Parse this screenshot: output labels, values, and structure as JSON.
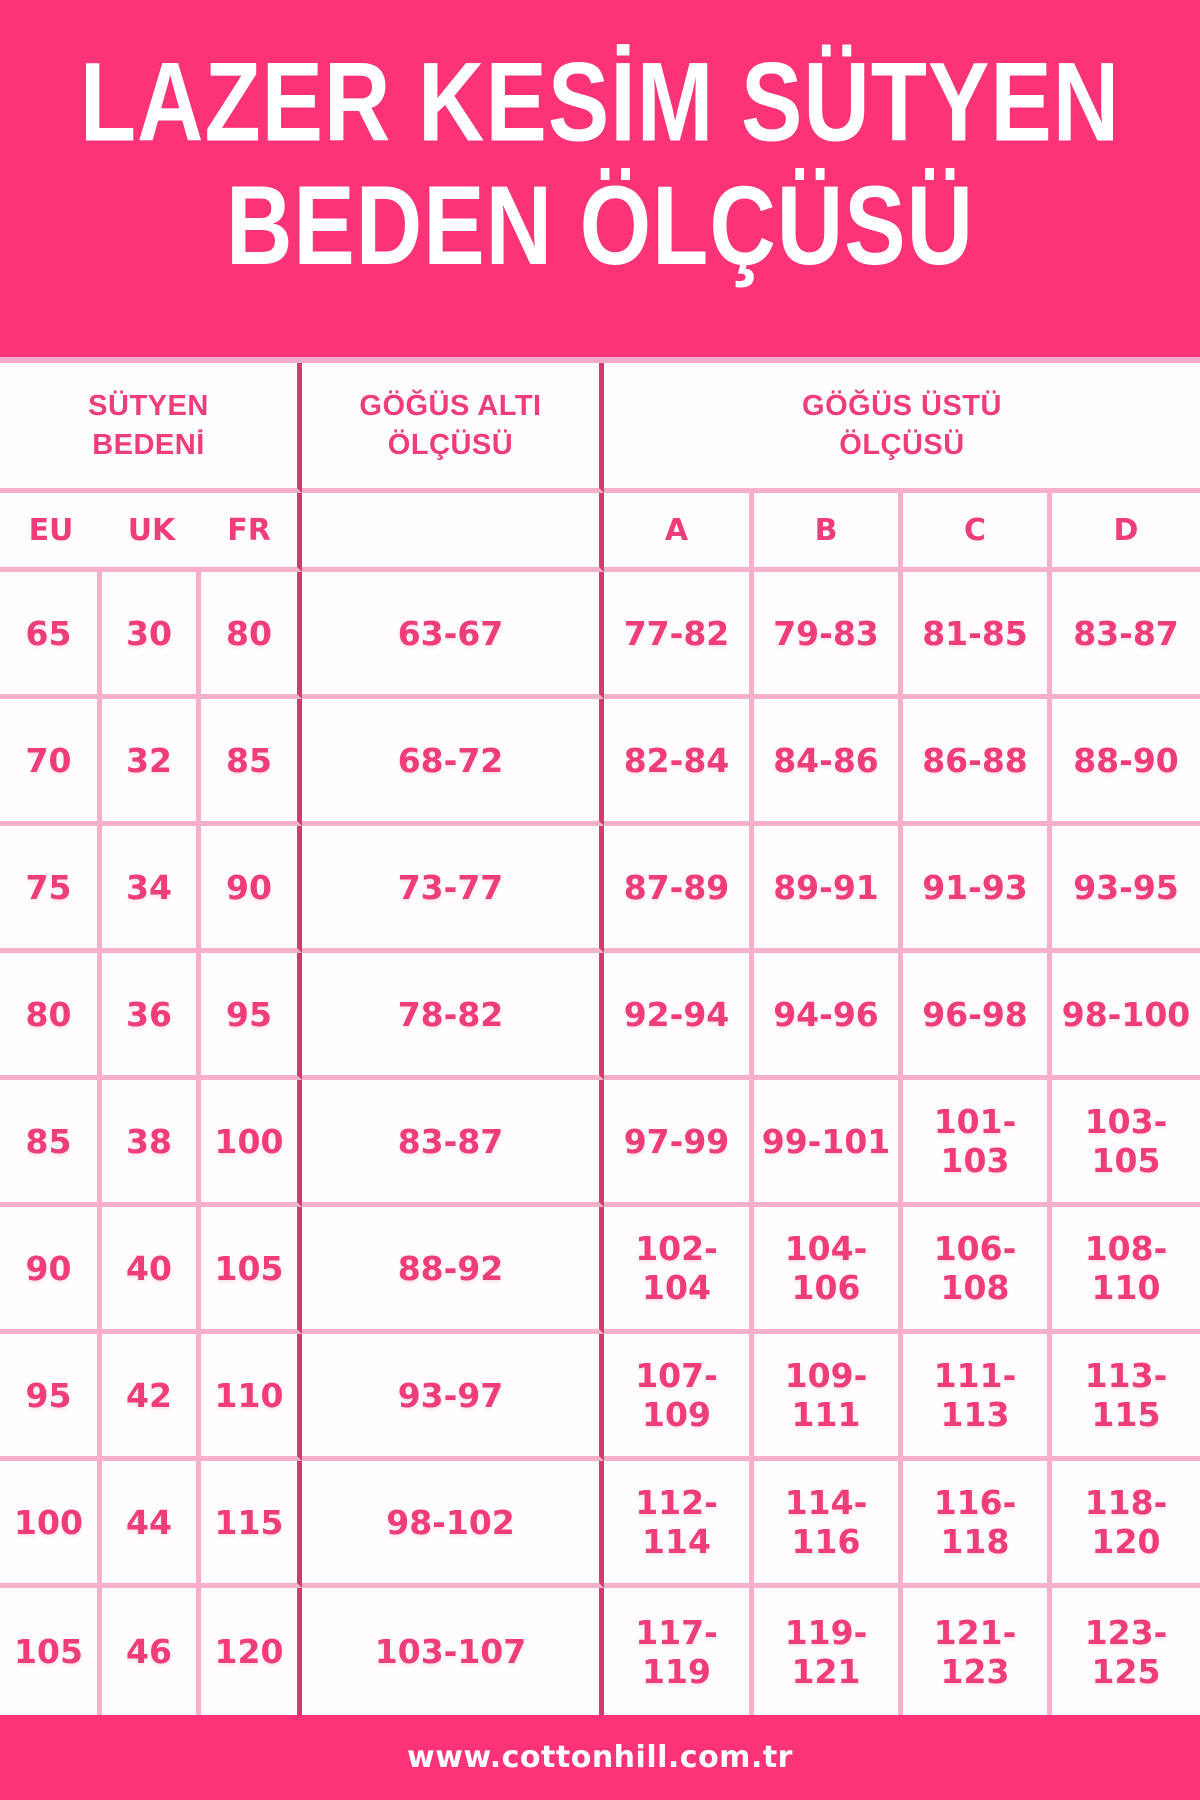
{
  "title": {
    "line1": "LAZER KESİM SÜTYEN",
    "line2": "BEDEN ÖLÇÜSÜ"
  },
  "footer": {
    "url": "www.cottonhill.com.tr"
  },
  "colors": {
    "band_pink": "#fc3377",
    "text_pink": "#ee3d78",
    "grid_light": "#f8b0ca",
    "grid_dark": "#d9386f",
    "cell_bg": "#fffdfe",
    "title_text": "#ffffff"
  },
  "table": {
    "group_headers": {
      "size_line1": "SÜTYEN",
      "size_line2": "BEDENİ",
      "under_line1": "GÖĞÜS ALTI",
      "under_line2": "ÖLÇÜSÜ",
      "over_line1": "GÖĞÜS ÜSTÜ",
      "over_line2": "ÖLÇÜSÜ"
    },
    "sub_headers": {
      "eu": "EU",
      "uk": "UK",
      "fr": "FR",
      "measure": "",
      "a": "A",
      "b": "B",
      "c": "C",
      "d": "D"
    },
    "rows": [
      [
        "65",
        "30",
        "80",
        "63-67",
        "77-82",
        "79-83",
        "81-85",
        "83-87"
      ],
      [
        "70",
        "32",
        "85",
        "68-72",
        "82-84",
        "84-86",
        "86-88",
        "88-90"
      ],
      [
        "75",
        "34",
        "90",
        "73-77",
        "87-89",
        "89-91",
        "91-93",
        "93-95"
      ],
      [
        "80",
        "36",
        "95",
        "78-82",
        "92-94",
        "94-96",
        "96-98",
        "98-100"
      ],
      [
        "85",
        "38",
        "100",
        "83-87",
        "97-99",
        "99-101",
        "101-103",
        "103-105"
      ],
      [
        "90",
        "40",
        "105",
        "88-92",
        "102-104",
        "104-106",
        "106-108",
        "108-110"
      ],
      [
        "95",
        "42",
        "110",
        "93-97",
        "107-109",
        "109-111",
        "111-113",
        "113-115"
      ],
      [
        "100",
        "44",
        "115",
        "98-102",
        "112-114",
        "114-116",
        "116-118",
        "118-120"
      ],
      [
        "105",
        "46",
        "120",
        "103-107",
        "117-119",
        "119-121",
        "121-123",
        "123-125"
      ]
    ]
  },
  "chart_data": {
    "type": "table",
    "title": "LAZER KESİM SÜTYEN BEDEN ÖLÇÜSÜ",
    "column_groups": [
      {
        "label": "SÜTYEN BEDENİ",
        "span": 3
      },
      {
        "label": "GÖĞÜS ALTI ÖLÇÜSÜ",
        "span": 1
      },
      {
        "label": "GÖĞÜS ÜSTÜ ÖLÇÜSÜ",
        "span": 4
      }
    ],
    "columns": [
      "EU",
      "UK",
      "FR",
      "GÖĞÜS ALTI ÖLÇÜSÜ",
      "A",
      "B",
      "C",
      "D"
    ],
    "rows": [
      [
        "65",
        "30",
        "80",
        "63-67",
        "77-82",
        "79-83",
        "81-85",
        "83-87"
      ],
      [
        "70",
        "32",
        "85",
        "68-72",
        "82-84",
        "84-86",
        "86-88",
        "88-90"
      ],
      [
        "75",
        "34",
        "90",
        "73-77",
        "87-89",
        "89-91",
        "91-93",
        "93-95"
      ],
      [
        "80",
        "36",
        "95",
        "78-82",
        "92-94",
        "94-96",
        "96-98",
        "98-100"
      ],
      [
        "85",
        "38",
        "100",
        "83-87",
        "97-99",
        "99-101",
        "101-103",
        "103-105"
      ],
      [
        "90",
        "40",
        "105",
        "88-92",
        "102-104",
        "104-106",
        "106-108",
        "108-110"
      ],
      [
        "95",
        "42",
        "110",
        "93-97",
        "107-109",
        "109-111",
        "111-113",
        "113-115"
      ],
      [
        "100",
        "44",
        "115",
        "98-102",
        "112-114",
        "114-116",
        "116-118",
        "118-120"
      ],
      [
        "105",
        "46",
        "120",
        "103-107",
        "117-119",
        "119-121",
        "121-123",
        "123-125"
      ]
    ],
    "footer": "www.cottonhill.com.tr"
  }
}
